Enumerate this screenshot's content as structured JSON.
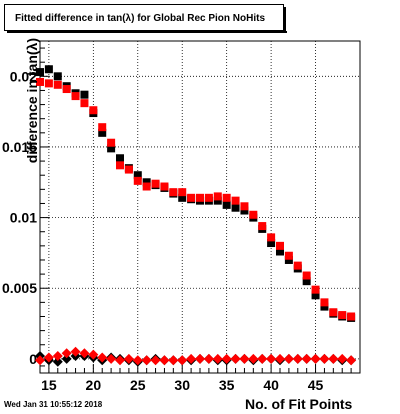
{
  "chart_data": {
    "type": "scatter",
    "title": "Fitted difference in tan(λ) for Global Rec Pion NoHits",
    "xlabel": "No. of Fit Points",
    "ylabel": "difference in tan(λ)",
    "xlim": [
      14,
      50
    ],
    "ylim": [
      -0.001,
      0.0225
    ],
    "xticks": [
      15,
      20,
      25,
      30,
      35,
      40,
      45
    ],
    "yticks": [
      0,
      0.005,
      0.01,
      0.015,
      0.02
    ],
    "ytick_labels": [
      "0",
      "0.005",
      "0.01",
      "0.015",
      "0.02"
    ],
    "grid": true,
    "colors": {
      "series_black": "#000000",
      "series_red": "#ff0000"
    },
    "series": [
      {
        "marker": "square",
        "color": "#000000",
        "x": [
          14,
          15,
          16,
          17,
          18,
          19,
          20,
          21,
          22,
          23,
          24,
          25,
          26,
          27,
          28,
          29,
          30,
          31,
          32,
          33,
          34,
          35,
          36,
          37,
          38,
          39,
          40,
          41,
          42,
          43,
          44,
          45,
          46,
          47,
          48,
          49
        ],
        "y": [
          0.0203,
          0.0205,
          0.02,
          0.0193,
          0.0188,
          0.0187,
          0.0174,
          0.016,
          0.0149,
          0.0142,
          0.0135,
          0.013,
          0.0125,
          0.0123,
          0.0121,
          0.0117,
          0.0114,
          0.0113,
          0.0112,
          0.0112,
          0.0112,
          0.0109,
          0.0107,
          0.0105,
          0.01,
          0.0092,
          0.0082,
          0.0076,
          0.007,
          0.0064,
          0.0055,
          0.0045,
          0.0037,
          0.0032,
          0.003,
          0.0029
        ]
      },
      {
        "marker": "square",
        "color": "#ff0000",
        "x": [
          14,
          15,
          16,
          17,
          18,
          19,
          20,
          21,
          22,
          23,
          24,
          25,
          26,
          27,
          28,
          29,
          30,
          31,
          32,
          33,
          34,
          35,
          36,
          37,
          38,
          39,
          40,
          41,
          42,
          43,
          44,
          45,
          46,
          47,
          48,
          49
        ],
        "y": [
          0.0196,
          0.0195,
          0.0194,
          0.0191,
          0.0186,
          0.0181,
          0.0176,
          0.0164,
          0.0153,
          0.0137,
          0.0134,
          0.0126,
          0.0122,
          0.0124,
          0.0122,
          0.0118,
          0.0118,
          0.0114,
          0.0114,
          0.0114,
          0.0115,
          0.0114,
          0.0112,
          0.0108,
          0.0102,
          0.0094,
          0.0086,
          0.008,
          0.0073,
          0.0066,
          0.0059,
          0.0049,
          0.004,
          0.0033,
          0.0031,
          0.003
        ]
      },
      {
        "marker": "diamond",
        "color": "#000000",
        "x": [
          14,
          15,
          16,
          17,
          18,
          19,
          20,
          21,
          22,
          23,
          24,
          25,
          26,
          27,
          28,
          29,
          30,
          31,
          32,
          33,
          34,
          35,
          36,
          37,
          38,
          39,
          40,
          41,
          42,
          43,
          44,
          45,
          46,
          47,
          48,
          49
        ],
        "y": [
          0.0002,
          -0.0001,
          -0.0002,
          0.0,
          0.0002,
          0.0002,
          0.0001,
          -0.0001,
          0.0001,
          0.0,
          -0.0001,
          -0.0002,
          -0.0001,
          0.0,
          -0.0001,
          -0.0001,
          -0.0001,
          -0.0001,
          0.0,
          0.0,
          -0.0001,
          -0.0001,
          0.0,
          0.0,
          -0.0001,
          0.0,
          0.0,
          -0.0001,
          0.0,
          0.0,
          0.0,
          0.0,
          0.0,
          0.0,
          -0.0001,
          -0.0001
        ]
      },
      {
        "marker": "diamond",
        "color": "#ff0000",
        "x": [
          14,
          15,
          16,
          17,
          18,
          19,
          20,
          21,
          22,
          23,
          24,
          25,
          26,
          27,
          28,
          29,
          30,
          31,
          32,
          33,
          34,
          35,
          36,
          37,
          38,
          39,
          40,
          41,
          42,
          43,
          44,
          45,
          46,
          47,
          48,
          49
        ],
        "y": [
          -0.0001,
          0.0001,
          0.0002,
          0.0004,
          0.0005,
          0.0004,
          0.0003,
          0.0001,
          0.0,
          -0.0001,
          0.0,
          -0.0001,
          -0.0001,
          -0.0001,
          -0.0001,
          -0.0001,
          -0.0001,
          0.0,
          0.0,
          0.0,
          0.0,
          0.0,
          0.0,
          0.0,
          0.0,
          0.0,
          0.0,
          0.0,
          0.0,
          0.0,
          0.0,
          0.0,
          0.0,
          0.0,
          0.0,
          -0.0001
        ]
      }
    ]
  },
  "footer": {
    "timestamp": "Wed Jan 31 10:55:12 2018"
  }
}
